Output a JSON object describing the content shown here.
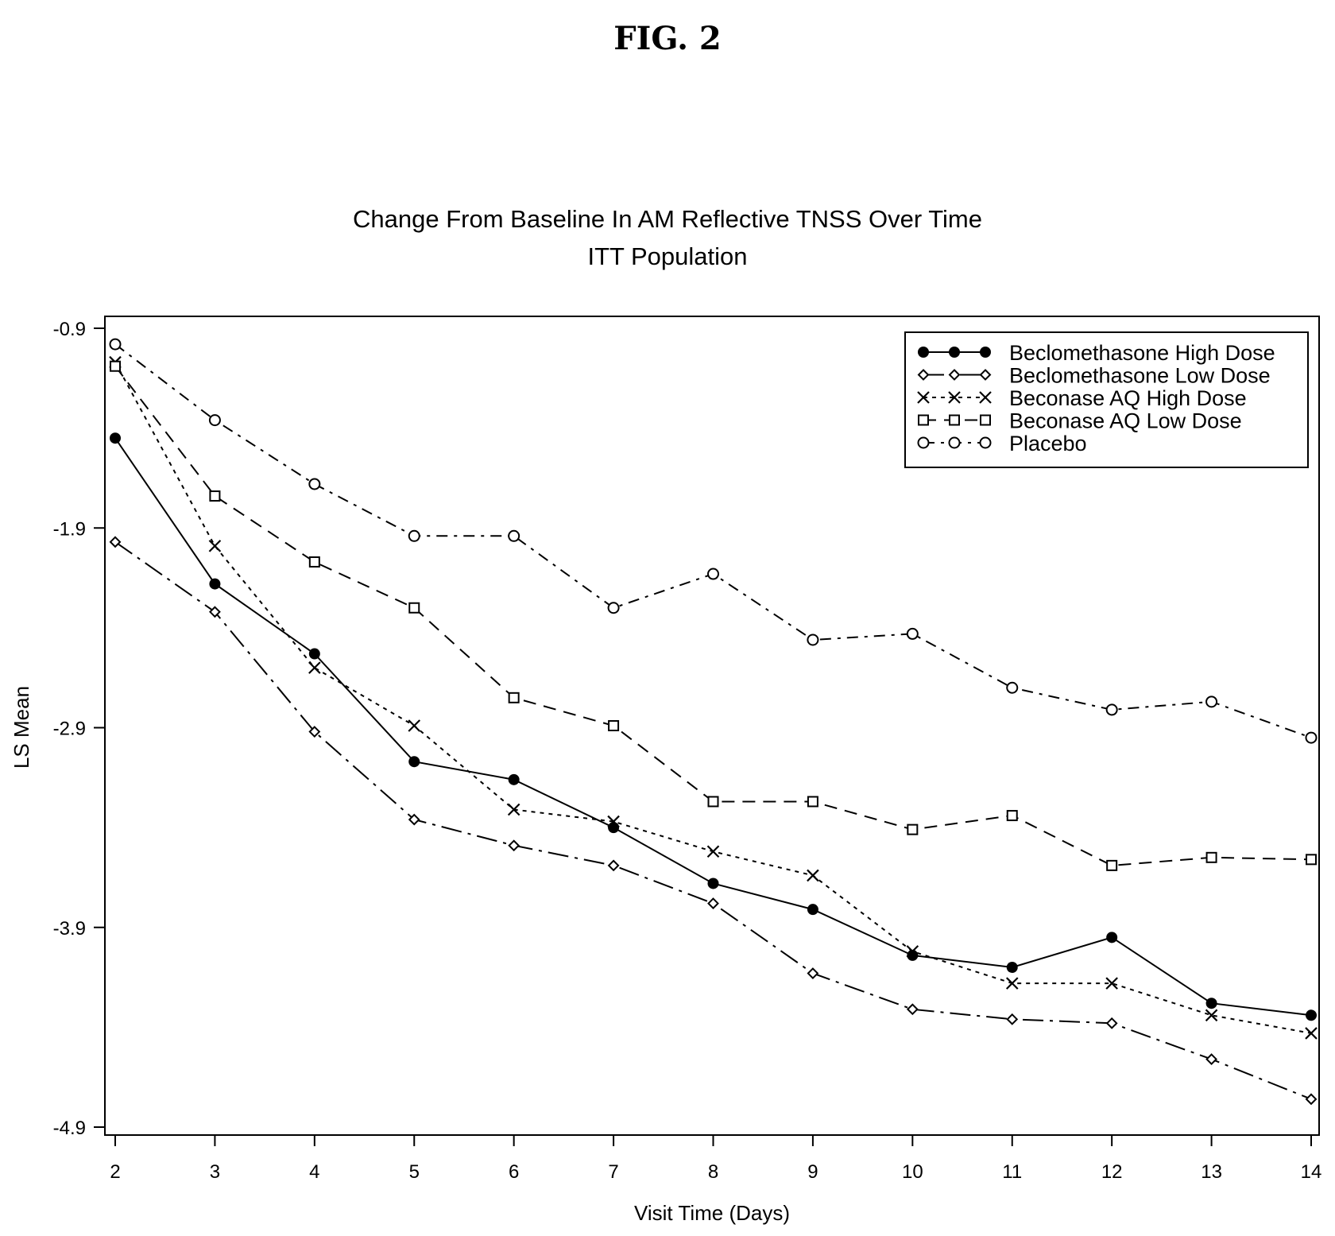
{
  "figure_label": "FIG. 2",
  "chart_data": {
    "type": "line",
    "title": "Change From Baseline In AM Reflective TNSS Over Time",
    "subtitle": "ITT Population",
    "xlabel": "Visit Time (Days)",
    "ylabel": "LS Mean",
    "x": [
      2,
      3,
      4,
      5,
      6,
      7,
      8,
      9,
      10,
      11,
      12,
      13,
      14
    ],
    "xlim": [
      2,
      14
    ],
    "ylim": [
      -4.9,
      -0.9
    ],
    "yticks": [
      -0.9,
      -1.9,
      -2.9,
      -3.9,
      -4.9
    ],
    "ytick_labels": [
      "-0.9",
      "-1.9",
      "-2.9",
      "-3.9",
      "-4.9"
    ],
    "xtick_labels": [
      "2",
      "3",
      "4",
      "5",
      "6",
      "7",
      "8",
      "9",
      "10",
      "11",
      "12",
      "13",
      "14"
    ],
    "grid": false,
    "legend_position": "top-right",
    "series": [
      {
        "name": "Beclomethasone High Dose",
        "marker": "filled-circle",
        "line": "solid",
        "values": [
          -1.45,
          -2.18,
          -2.53,
          -3.07,
          -3.16,
          -3.4,
          -3.68,
          -3.81,
          -4.04,
          -4.1,
          -3.95,
          -4.28,
          -4.34
        ]
      },
      {
        "name": "Beclomethasone Low Dose",
        "marker": "diamond",
        "line": "long-dash-dot",
        "values": [
          -1.97,
          -2.32,
          -2.92,
          -3.36,
          -3.49,
          -3.59,
          -3.78,
          -4.13,
          -4.31,
          -4.36,
          -4.38,
          -4.56,
          -4.76
        ]
      },
      {
        "name": "Beconase AQ High Dose",
        "marker": "x",
        "line": "dotted",
        "values": [
          -1.07,
          -1.99,
          -2.6,
          -2.89,
          -3.31,
          -3.37,
          -3.52,
          -3.64,
          -4.02,
          -4.18,
          -4.18,
          -4.34,
          -4.43
        ]
      },
      {
        "name": "Beconase AQ Low Dose",
        "marker": "square",
        "line": "dashed",
        "values": [
          -1.09,
          -1.74,
          -2.07,
          -2.3,
          -2.75,
          -2.89,
          -3.27,
          -3.27,
          -3.41,
          -3.34,
          -3.59,
          -3.55,
          -3.56
        ]
      },
      {
        "name": "Placebo",
        "marker": "open-circle",
        "line": "dash-dot",
        "values": [
          -0.98,
          -1.36,
          -1.68,
          -1.94,
          -1.94,
          -2.3,
          -2.13,
          -2.46,
          -2.43,
          -2.7,
          -2.81,
          -2.77,
          -2.95
        ]
      }
    ]
  }
}
